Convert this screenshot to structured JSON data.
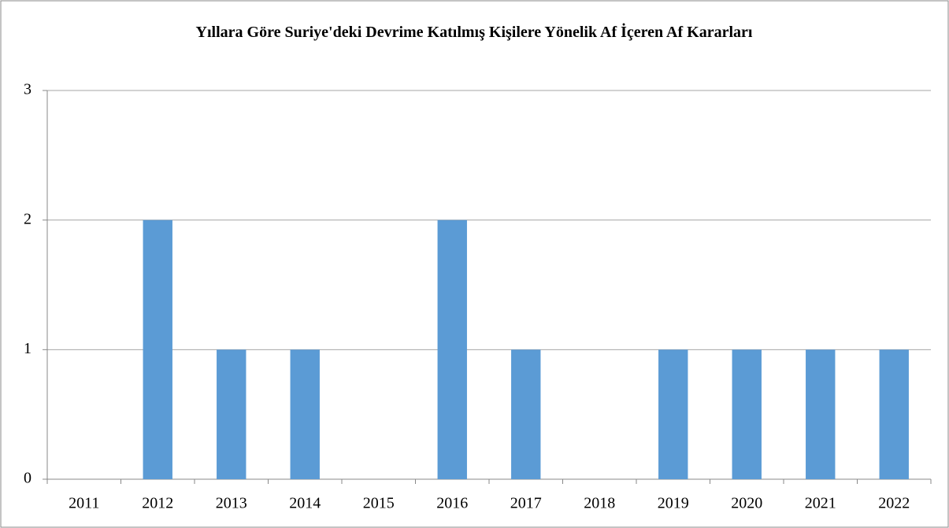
{
  "chart_data": {
    "type": "bar",
    "title": "Yıllara Göre Suriye'deki Devrime Katılmış Kişilere Yönelik Af İçeren Af Kararları",
    "categories": [
      "2011",
      "2012",
      "2013",
      "2014",
      "2015",
      "2016",
      "2017",
      "2018",
      "2019",
      "2020",
      "2021",
      "2022"
    ],
    "values": [
      0,
      2,
      1,
      1,
      0,
      2,
      1,
      0,
      1,
      1,
      1,
      1
    ],
    "color": "#5b9bd5",
    "ylim": [
      0,
      3
    ],
    "yticks": [
      0,
      1,
      2,
      3
    ],
    "grid": true
  }
}
